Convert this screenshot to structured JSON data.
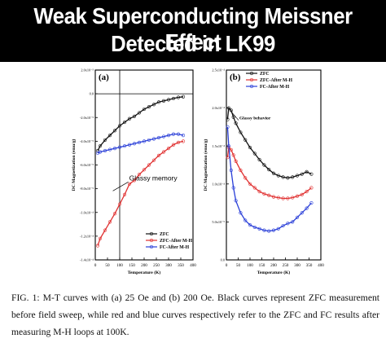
{
  "banner": {
    "line1": "Weak Superconducting Meissner Effect",
    "line2": "Detected in LK99"
  },
  "caption": "FIG. 1: M-T curves with (a) 25 Oe and (b) 200 Oe. Black curves represent ZFC measurement before field sweep, while red and blue curves respectively refer to the ZFC and FC results after measuring M-H loops at 100K.",
  "colors": {
    "zfc": "#111111",
    "zfc_after": "#e03030",
    "fc_after": "#2a3fd8"
  },
  "chart_data": [
    {
      "type": "scatter",
      "panel_label": "(a)",
      "xlabel": "Temperature (K)",
      "ylabel": "DC Magnetization (emu/g)",
      "xlim": [
        0,
        400
      ],
      "ylim": [
        -0.00014,
        2e-05
      ],
      "xticks": [
        0,
        50,
        100,
        150,
        200,
        250,
        300,
        350,
        400
      ],
      "xtick_labels": [
        "0",
        "50",
        "100",
        "150",
        "200",
        "250",
        "300",
        "350",
        "400"
      ],
      "yticks": [
        2e-05,
        0.0,
        -2e-05,
        -4e-05,
        -6e-05,
        -8e-05,
        -0.0001,
        -0.00012,
        -0.00014
      ],
      "ytick_labels": [
        "2.0x10⁻⁵",
        "0.0",
        "-2.0x10⁻⁵",
        "-4.0x10⁻⁵",
        "-6.0x10⁻⁵",
        "-8.0x10⁻⁵",
        "-1.0x10⁻⁴",
        "-1.2x10⁻⁴",
        "-1.4x10⁻⁴"
      ],
      "reference_lines": {
        "horizontal_y": 0.0,
        "vertical_x": 100
      },
      "annotation": {
        "text": "Glassy memory",
        "x": 112,
        "y": -7.5e-05
      },
      "legend": {
        "placement": "bottom-right",
        "entries": [
          "ZFC",
          "ZFC-After M-H",
          "FC-After M-H"
        ]
      },
      "series": [
        {
          "name": "ZFC",
          "x": [
            10,
            20,
            40,
            60,
            80,
            100,
            120,
            140,
            160,
            180,
            200,
            220,
            240,
            260,
            280,
            300,
            320,
            340,
            360
          ],
          "y": [
            -4.8e-05,
            -4.4e-05,
            -3.9e-05,
            -3.5e-05,
            -3.1e-05,
            -2.7e-05,
            -2.4e-05,
            -2.1e-05,
            -1.9e-05,
            -1.6e-05,
            -1.3e-05,
            -1.1e-05,
            -9e-06,
            -7e-06,
            -6e-06,
            -5e-06,
            -4e-06,
            -3e-06,
            -2.5e-06
          ]
        },
        {
          "name": "ZFC-After M-H",
          "x": [
            10,
            20,
            40,
            60,
            80,
            100,
            120,
            140,
            160,
            180,
            200,
            220,
            240,
            260,
            280,
            300,
            320,
            340,
            360
          ],
          "y": [
            -0.000128,
            -0.000122,
            -0.000115,
            -0.000108,
            -0.000101,
            -9.3e-05,
            -8.5e-05,
            -7.6e-05,
            -7.3e-05,
            -6.8e-05,
            -6.4e-05,
            -6e-05,
            -5.6e-05,
            -5.2e-05,
            -4.9e-05,
            -4.6e-05,
            -4.3e-05,
            -4.1e-05,
            -4e-05
          ]
        },
        {
          "name": "FC-After M-H",
          "x": [
            10,
            20,
            40,
            60,
            80,
            100,
            120,
            140,
            160,
            180,
            200,
            220,
            240,
            260,
            280,
            300,
            320,
            340,
            360
          ],
          "y": [
            -5e-05,
            -4.9e-05,
            -4.8e-05,
            -4.7e-05,
            -4.6e-05,
            -4.5e-05,
            -4.4e-05,
            -4.3e-05,
            -4.2e-05,
            -4.1e-05,
            -4e-05,
            -3.9e-05,
            -3.8e-05,
            -3.7e-05,
            -3.6e-05,
            -3.5e-05,
            -3.4e-05,
            -3.4e-05,
            -3.5e-05
          ]
        }
      ]
    },
    {
      "type": "scatter",
      "panel_label": "(b)",
      "xlabel": "Temperature (K)",
      "ylabel": "DC Magnetization (emu/g)",
      "xlim": [
        0,
        400
      ],
      "ylim": [
        0.0,
        0.00025
      ],
      "xticks": [
        0,
        50,
        100,
        150,
        200,
        250,
        300,
        350,
        400
      ],
      "xtick_labels": [
        "0",
        "50",
        "100",
        "150",
        "200",
        "250",
        "300",
        "350",
        "400"
      ],
      "yticks": [
        0.00025,
        0.0002,
        0.00015,
        0.0001,
        5e-05,
        0.0
      ],
      "ytick_labels": [
        "2.5x10⁻⁴",
        "2.0x10⁻⁴",
        "1.5x10⁻⁴",
        "1.0x10⁻⁴",
        "5.0x10⁻⁵",
        "0.0"
      ],
      "reference_lines": {
        "horizontal_y": 0.0
      },
      "annotation": {
        "text": "Glassy behavior",
        "x": 55,
        "y": 0.000185
      },
      "legend": {
        "placement": "top-left",
        "entries": [
          "ZFC",
          "ZFC-After M-H",
          "FC-After M-H"
        ]
      },
      "series": [
        {
          "name": "ZFC",
          "x": [
            5,
            10,
            20,
            30,
            40,
            60,
            80,
            100,
            120,
            140,
            160,
            180,
            200,
            220,
            240,
            260,
            280,
            300,
            320,
            340,
            360
          ],
          "y": [
            0.000185,
            0.0002,
            0.000197,
            0.000188,
            0.00018,
            0.000168,
            0.000158,
            0.000148,
            0.00014,
            0.000132,
            0.000125,
            0.000119,
            0.000114,
            0.000111,
            0.000109,
            0.000108,
            0.000109,
            0.000111,
            0.000113,
            0.000116,
            0.000113
          ]
        },
        {
          "name": "ZFC-After M-H",
          "x": [
            5,
            10,
            20,
            30,
            40,
            60,
            80,
            100,
            120,
            140,
            160,
            180,
            200,
            220,
            240,
            260,
            280,
            300,
            320,
            340,
            360
          ],
          "y": [
            0.000135,
            0.000148,
            0.000145,
            0.000138,
            0.00013,
            0.000118,
            0.000108,
            0.0001,
            9.5e-05,
            9e-05,
            8.7e-05,
            8.5e-05,
            8.3e-05,
            8.2e-05,
            8.1e-05,
            8.1e-05,
            8.2e-05,
            8.4e-05,
            8.6e-05,
            9e-05,
            9.5e-05
          ]
        },
        {
          "name": "FC-After M-H",
          "x": [
            5,
            10,
            20,
            30,
            40,
            60,
            80,
            100,
            120,
            140,
            160,
            180,
            200,
            220,
            240,
            260,
            280,
            300,
            320,
            340,
            360
          ],
          "y": [
            0.000175,
            0.00015,
            0.000118,
            9.5e-05,
            7.8e-05,
            6.2e-05,
            5.2e-05,
            4.6e-05,
            4.3e-05,
            4.1e-05,
            3.9e-05,
            3.8e-05,
            3.9e-05,
            4.1e-05,
            4.5e-05,
            4.8e-05,
            5e-05,
            5.6e-05,
            6.2e-05,
            6.8e-05,
            7.5e-05
          ]
        }
      ]
    }
  ]
}
